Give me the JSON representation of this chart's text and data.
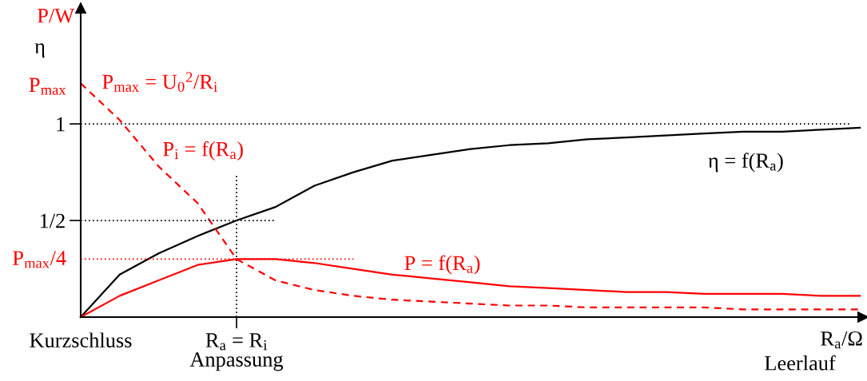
{
  "chart_data": {
    "type": "line",
    "xlabel": "R$_{a}$/Ω",
    "ylabel": "P/W",
    "ylim": [
      0,
      1.6
    ],
    "categories": [
      "Kurzschluss",
      null,
      null,
      null,
      "R$_{a}$ = R$_{i}$\nAnpassung",
      null,
      null,
      null,
      null,
      null,
      null,
      null,
      null,
      null,
      null,
      null,
      null,
      null,
      null,
      null,
      null
    ],
    "yticks": [
      {
        "value": 0.5,
        "label": "1/2"
      },
      {
        "value": 1,
        "label": "1"
      }
    ],
    "grid": false,
    "ref_lines": [
      {
        "axis": "y",
        "value": 1,
        "label": null,
        "color": "#000000",
        "line_style": "dotted"
      },
      {
        "axis": "x",
        "value": "R$_{a}$ = R$_{i}$\nAnpassung",
        "label": null,
        "color": "#000000",
        "line_style": "dotted"
      }
    ],
    "annotations": [
      "η",
      "Leerlauf",
      "P$_{max}$ = U$_{0}$$^{2}$/R$_{i}$",
      "P$_{max}$",
      "P$_{max}$/4"
    ],
    "series": [
      {
        "name": "η = f(R$_{a}$)",
        "color": "#000000",
        "line_style": "solid",
        "values": [
          0,
          0.22,
          0.33,
          0.42,
          0.5,
          0.57,
          0.68,
          0.75,
          0.81,
          0.84,
          0.87,
          0.89,
          0.9,
          0.92,
          0.93,
          0.94,
          0.95,
          0.96,
          0.96,
          0.97,
          0.98
        ]
      },
      {
        "name": "P = f(R$_{a}$)",
        "color": "#ff0000",
        "line_style": "solid",
        "values": [
          0,
          0.11,
          0.19,
          0.27,
          0.3,
          0.3,
          0.28,
          0.25,
          0.22,
          0.2,
          0.18,
          0.16,
          0.15,
          0.14,
          0.13,
          0.13,
          0.12,
          0.12,
          0.12,
          0.11,
          0.11
        ]
      },
      {
        "name": "P$_{i}$ = f(R$_{a}$)",
        "color": "#ff0000",
        "line_style": "dashed",
        "values": [
          1.21,
          1.02,
          0.78,
          0.59,
          0.3,
          0.19,
          0.14,
          0.11,
          0.09,
          0.08,
          0.07,
          0.06,
          0.06,
          0.05,
          0.05,
          0.05,
          0.05,
          0.04,
          0.04,
          0.04,
          0.04
        ]
      },
      {
        "color": "#000000",
        "line_style": "dotted",
        "values": [
          0.5,
          0.5,
          0.5,
          0.5,
          0.5,
          0.5,
          null,
          null,
          null,
          null,
          null,
          null,
          null,
          null,
          null,
          null,
          null,
          null,
          null,
          null,
          null
        ]
      },
      {
        "color": "#ff0000",
        "line_style": "dotted",
        "values": [
          0.3,
          0.3,
          0.3,
          0.3,
          0.3,
          0.3,
          0.3,
          0.3,
          null,
          null,
          null,
          null,
          null,
          null,
          null,
          null,
          null,
          null,
          null,
          null,
          null
        ]
      }
    ]
  }
}
